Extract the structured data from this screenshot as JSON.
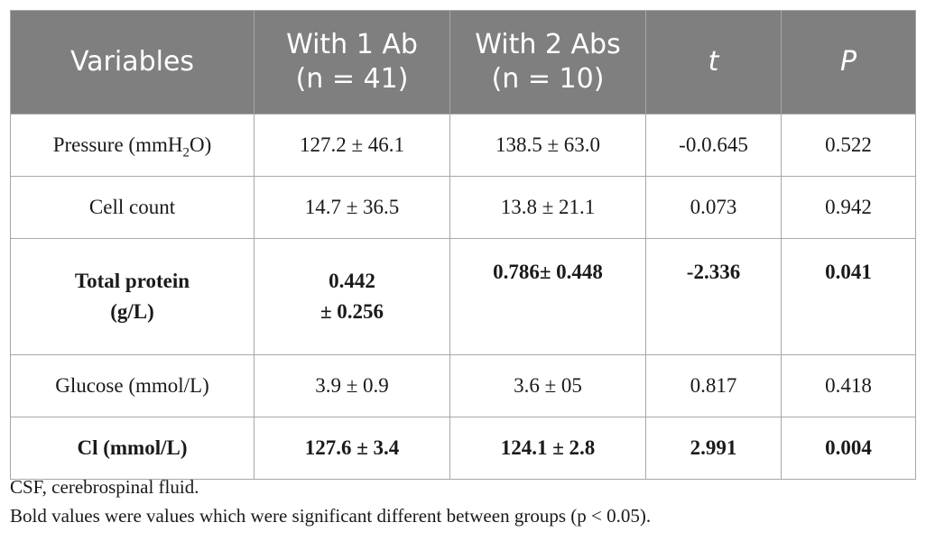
{
  "table": {
    "headers": [
      {
        "line1": "Variables",
        "line2": ""
      },
      {
        "line1": "With 1 Ab",
        "line2": "(n = 41)"
      },
      {
        "line1": "With 2 Abs",
        "line2": "(n = 10)"
      },
      {
        "line1": "t",
        "line2": ""
      },
      {
        "line1": "P",
        "line2": ""
      }
    ],
    "rows": [
      {
        "variable": "Pressure (mmH",
        "variable_sub": "2",
        "variable_tail": "O)",
        "with1": "127.2 ± 46.1",
        "with2": "138.5 ± 63.0",
        "t": "-0.0.645",
        "p": "0.522"
      },
      {
        "variable": "Cell count",
        "with1": "14.7 ± 36.5",
        "with2": "13.8 ± 21.1",
        "t": "0.073",
        "p": "0.942"
      },
      {
        "variable_line1": "Total protein",
        "variable_line2": "(g/L)",
        "with1_line1": "0.442",
        "with1_line2": "± 0.256",
        "with2": "0.786± 0.448",
        "t": "-2.336",
        "p": "0.041"
      },
      {
        "variable": "Glucose (mmol/L)",
        "with1": "3.9 ± 0.9",
        "with2": "3.6 ± 05",
        "t": "0.817",
        "p": "0.418"
      },
      {
        "variable": "Cl (mmol/L)",
        "with1": "127.6 ± 3.4",
        "with2": "124.1 ± 2.8",
        "t": "2.991",
        "p": "0.004"
      }
    ]
  },
  "footnotes": {
    "abbrev": "CSF, cerebrospinal fluid.",
    "bold_note": "Bold values were values which were significant different between groups (p < 0.05)."
  }
}
